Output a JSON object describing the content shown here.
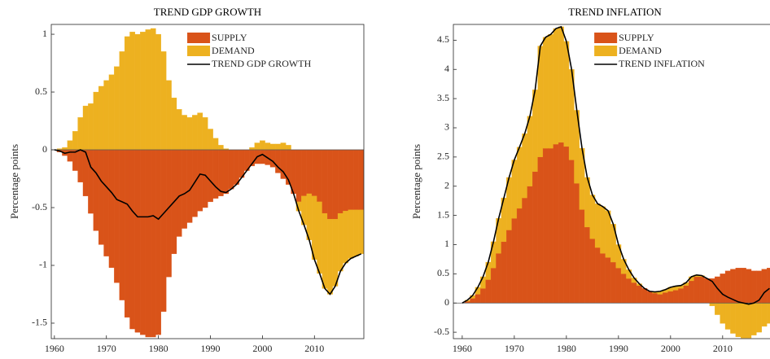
{
  "chart_data": [
    {
      "type": "bar",
      "title": "TREND GDP GROWTH",
      "ylabel": "Percentage points",
      "x": [
        1960,
        1961,
        1962,
        1963,
        1964,
        1965,
        1966,
        1967,
        1968,
        1969,
        1970,
        1971,
        1972,
        1973,
        1974,
        1975,
        1976,
        1977,
        1978,
        1979,
        1980,
        1981,
        1982,
        1983,
        1984,
        1985,
        1986,
        1987,
        1988,
        1989,
        1990,
        1991,
        1992,
        1993,
        1994,
        1995,
        1996,
        1997,
        1998,
        1999,
        2000,
        2001,
        2002,
        2003,
        2004,
        2005,
        2006,
        2007,
        2008,
        2009,
        2010,
        2011,
        2012,
        2013,
        2014,
        2015,
        2016,
        2017,
        2018,
        2019
      ],
      "xlim": [
        1959.4,
        2019.5
      ],
      "xticks": [
        1960,
        1970,
        1980,
        1990,
        2000,
        2010
      ],
      "ylim": [
        -1.634,
        1.085
      ],
      "yticks": [
        -1.5,
        -1,
        -0.5,
        0,
        0.5,
        1
      ],
      "legend": "upper right",
      "series": [
        {
          "name": "SUPPLY",
          "color": "#d95319",
          "type": "bar",
          "values": [
            0,
            -0.02,
            -0.05,
            -0.1,
            -0.18,
            -0.28,
            -0.4,
            -0.55,
            -0.7,
            -0.82,
            -0.92,
            -1.02,
            -1.15,
            -1.3,
            -1.45,
            -1.55,
            -1.58,
            -1.6,
            -1.62,
            -1.62,
            -1.6,
            -1.4,
            -1.1,
            -0.9,
            -0.75,
            -0.68,
            -0.63,
            -0.58,
            -0.53,
            -0.5,
            -0.45,
            -0.42,
            -0.4,
            -0.38,
            -0.34,
            -0.3,
            -0.24,
            -0.18,
            -0.14,
            -0.12,
            -0.12,
            -0.13,
            -0.15,
            -0.2,
            -0.25,
            -0.3,
            -0.38,
            -0.45,
            -0.4,
            -0.38,
            -0.4,
            -0.45,
            -0.55,
            -0.6,
            -0.6,
            -0.55,
            -0.53,
            -0.52,
            -0.52,
            -0.52
          ]
        },
        {
          "name": "DEMAND",
          "color": "#edb120",
          "type": "bar",
          "values": [
            0,
            0.01,
            0.02,
            0.08,
            0.16,
            0.28,
            0.38,
            0.4,
            0.5,
            0.55,
            0.6,
            0.65,
            0.72,
            0.85,
            0.98,
            1.02,
            1.0,
            1.02,
            1.04,
            1.05,
            1.0,
            0.85,
            0.6,
            0.45,
            0.35,
            0.3,
            0.28,
            0.3,
            0.32,
            0.28,
            0.18,
            0.1,
            0.04,
            0.01,
            0,
            0,
            0,
            0,
            0.02,
            0.06,
            0.08,
            0.06,
            0.05,
            0.05,
            0.06,
            0.04,
            0,
            -0.08,
            -0.25,
            -0.4,
            -0.55,
            -0.62,
            -0.65,
            -0.65,
            -0.58,
            -0.5,
            -0.45,
            -0.42,
            -0.4,
            -0.38
          ]
        },
        {
          "name": "TREND GDP GROWTH",
          "color": "#000000",
          "type": "line",
          "values": [
            0,
            -0.01,
            -0.03,
            -0.02,
            -0.02,
            0,
            -0.02,
            -0.15,
            -0.2,
            -0.27,
            -0.32,
            -0.37,
            -0.43,
            -0.45,
            -0.47,
            -0.53,
            -0.58,
            -0.58,
            -0.58,
            -0.57,
            -0.6,
            -0.55,
            -0.5,
            -0.45,
            -0.4,
            -0.38,
            -0.35,
            -0.28,
            -0.21,
            -0.22,
            -0.27,
            -0.32,
            -0.36,
            -0.37,
            -0.34,
            -0.3,
            -0.24,
            -0.18,
            -0.12,
            -0.06,
            -0.04,
            -0.07,
            -0.1,
            -0.15,
            -0.19,
            -0.26,
            -0.38,
            -0.53,
            -0.65,
            -0.78,
            -0.95,
            -1.07,
            -1.2,
            -1.25,
            -1.18,
            -1.05,
            -0.98,
            -0.94,
            -0.92,
            -0.9
          ]
        }
      ]
    },
    {
      "type": "bar",
      "title": "TREND INFLATION",
      "ylabel": "Percentage points",
      "x": [
        1960,
        1961,
        1962,
        1963,
        1964,
        1965,
        1966,
        1967,
        1968,
        1969,
        1970,
        1971,
        1972,
        1973,
        1974,
        1975,
        1976,
        1977,
        1978,
        1979,
        1980,
        1981,
        1982,
        1983,
        1984,
        1985,
        1986,
        1987,
        1988,
        1989,
        1990,
        1991,
        1992,
        1993,
        1994,
        1995,
        1996,
        1997,
        1998,
        1999,
        2000,
        2001,
        2002,
        2003,
        2004,
        2005,
        2006,
        2007,
        2008,
        2009,
        2010,
        2011,
        2012,
        2013,
        2014,
        2015,
        2016,
        2017,
        2018,
        2019
      ],
      "xlim": [
        1958.3,
        2020.5
      ],
      "xticks": [
        1960,
        1970,
        1980,
        1990,
        2000,
        2010
      ],
      "ylim": [
        -0.61,
        4.77
      ],
      "yticks": [
        -0.5,
        0,
        0.5,
        1,
        1.5,
        2,
        2.5,
        3,
        3.5,
        4,
        4.5
      ],
      "legend": "upper right",
      "series": [
        {
          "name": "SUPPLY",
          "color": "#d95319",
          "type": "bar",
          "values": [
            0,
            0.03,
            0.08,
            0.15,
            0.25,
            0.4,
            0.6,
            0.85,
            1.05,
            1.25,
            1.45,
            1.62,
            1.8,
            2.0,
            2.25,
            2.5,
            2.65,
            2.65,
            2.72,
            2.75,
            2.68,
            2.45,
            2.05,
            1.6,
            1.3,
            1.1,
            0.95,
            0.85,
            0.78,
            0.7,
            0.6,
            0.5,
            0.42,
            0.35,
            0.3,
            0.25,
            0.2,
            0.17,
            0.15,
            0.18,
            0.2,
            0.22,
            0.25,
            0.3,
            0.38,
            0.45,
            0.45,
            0.42,
            0.42,
            0.45,
            0.5,
            0.55,
            0.58,
            0.6,
            0.6,
            0.58,
            0.55,
            0.55,
            0.58,
            0.6
          ]
        },
        {
          "name": "DEMAND",
          "color": "#edb120",
          "type": "bar",
          "values": [
            0,
            0.02,
            0.05,
            0.12,
            0.2,
            0.3,
            0.45,
            0.6,
            0.75,
            0.9,
            1.0,
            1.05,
            1.1,
            1.2,
            1.4,
            1.9,
            1.9,
            1.95,
            1.98,
            1.98,
            1.8,
            1.55,
            1.25,
            1.05,
            0.85,
            0.75,
            0.75,
            0.8,
            0.8,
            0.65,
            0.4,
            0.25,
            0.15,
            0.08,
            0.03,
            0,
            0,
            0.02,
            0.05,
            0.05,
            0.07,
            0.07,
            0.05,
            0.05,
            0.07,
            0.03,
            0.02,
            0,
            -0.05,
            -0.2,
            -0.35,
            -0.45,
            -0.52,
            -0.58,
            -0.6,
            -0.6,
            -0.55,
            -0.5,
            -0.4,
            -0.35
          ]
        },
        {
          "name": "TREND INFLATION",
          "color": "#000000",
          "type": "line",
          "values": [
            0,
            0.05,
            0.13,
            0.27,
            0.45,
            0.7,
            1.05,
            1.45,
            1.8,
            2.15,
            2.45,
            2.67,
            2.9,
            3.2,
            3.65,
            4.4,
            4.55,
            4.6,
            4.7,
            4.73,
            4.48,
            4.0,
            3.3,
            2.65,
            2.15,
            1.85,
            1.7,
            1.65,
            1.58,
            1.35,
            1.0,
            0.75,
            0.57,
            0.43,
            0.33,
            0.25,
            0.2,
            0.19,
            0.2,
            0.23,
            0.27,
            0.29,
            0.3,
            0.35,
            0.45,
            0.48,
            0.47,
            0.42,
            0.37,
            0.25,
            0.15,
            0.1,
            0.06,
            0.02,
            0,
            -0.02,
            0,
            0.05,
            0.18,
            0.25
          ]
        }
      ]
    }
  ]
}
